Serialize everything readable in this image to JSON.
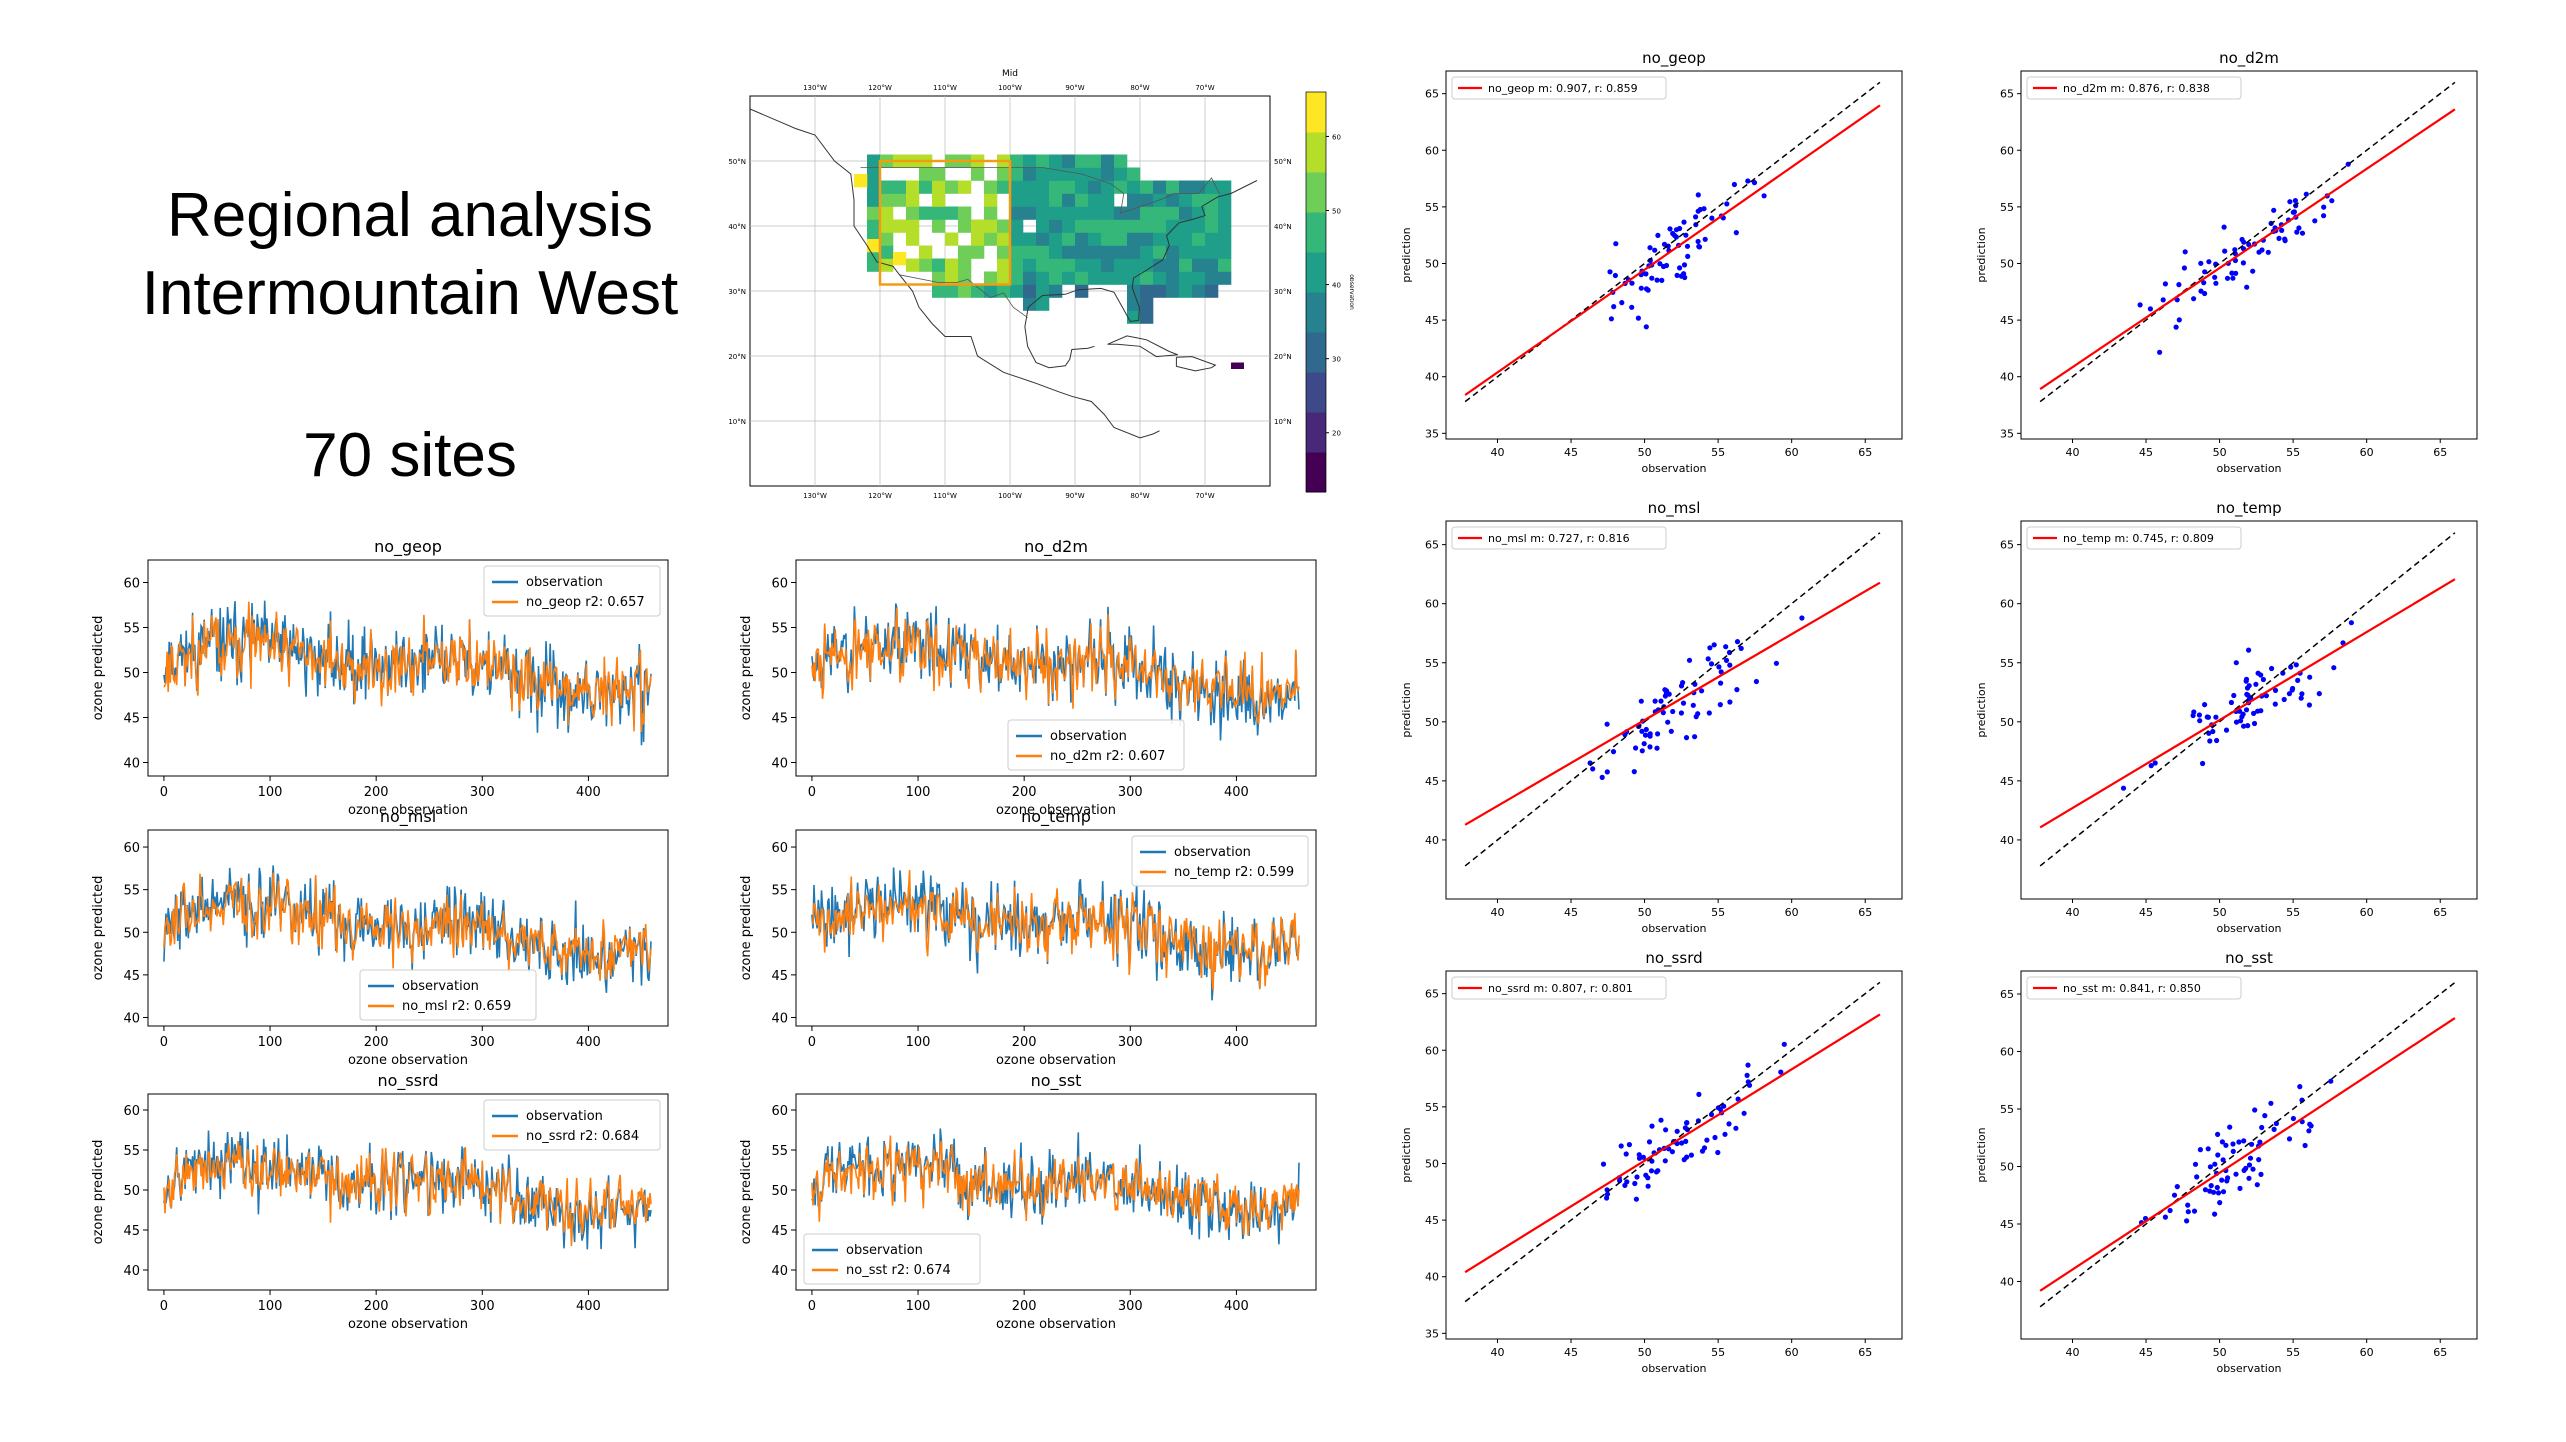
{
  "slide": {
    "title_line1": "Regional analysis",
    "title_line2": "Intermountain West",
    "sites": "70 sites"
  },
  "colors": {
    "observation": "#1f77b4",
    "prediction": "#ff7f0e",
    "scatter_points": "#0000ff",
    "fit_line": "#ff0000",
    "identity_line": "#000000"
  },
  "chart_data": [
    {
      "id": "map",
      "type": "heatmap",
      "title": "Mid",
      "colorbar_label": "observation",
      "colorbar_ticks": [
        20,
        30,
        40,
        50,
        60
      ],
      "colorbar_range": [
        12,
        66
      ],
      "lon_ticks": [
        "130°W",
        "120°W",
        "110°W",
        "100°W",
        "90°W",
        "80°W",
        "70°W"
      ],
      "lat_ticks": [
        "50°N",
        "40°N",
        "30°N",
        "20°N",
        "10°N"
      ],
      "region_box": {
        "lon": [
          -120,
          -100
        ],
        "lat": [
          31,
          50
        ]
      }
    },
    {
      "id": "ts_no_geop",
      "type": "line",
      "title": "no_geop",
      "xlabel": "ozone observation",
      "ylabel": "ozone predicted",
      "xlim": [
        -15,
        475
      ],
      "ylim": [
        38.5,
        62.5
      ],
      "xticks": [
        0,
        100,
        200,
        300,
        400
      ],
      "yticks": [
        40,
        45,
        50,
        55,
        60
      ],
      "legend_position": "upper-right",
      "series": [
        {
          "name": "observation",
          "color": "#1f77b4"
        },
        {
          "name": "no_geop  r2: 0.657",
          "color": "#ff7f0e"
        }
      ]
    },
    {
      "id": "ts_no_d2m",
      "type": "line",
      "title": "no_d2m",
      "xlabel": "ozone observation",
      "ylabel": "ozone predicted",
      "xlim": [
        -15,
        475
      ],
      "ylim": [
        38.5,
        62.5
      ],
      "xticks": [
        0,
        100,
        200,
        300,
        400
      ],
      "yticks": [
        40,
        45,
        50,
        55,
        60
      ],
      "legend_position": "lower-center",
      "series": [
        {
          "name": "observation",
          "color": "#1f77b4"
        },
        {
          "name": "no_d2m  r2: 0.607",
          "color": "#ff7f0e"
        }
      ]
    },
    {
      "id": "ts_no_msl",
      "type": "line",
      "title": "no_msl",
      "xlabel": "ozone observation",
      "ylabel": "ozone predicted",
      "xlim": [
        -15,
        475
      ],
      "ylim": [
        39,
        62
      ],
      "xticks": [
        0,
        100,
        200,
        300,
        400
      ],
      "yticks": [
        40,
        45,
        50,
        55,
        60
      ],
      "legend_position": "lower-center",
      "series": [
        {
          "name": "observation",
          "color": "#1f77b4"
        },
        {
          "name": "no_msl  r2: 0.659",
          "color": "#ff7f0e"
        }
      ]
    },
    {
      "id": "ts_no_temp",
      "type": "line",
      "title": "no_temp",
      "xlabel": "ozone observation",
      "ylabel": "ozone predicted",
      "xlim": [
        -15,
        475
      ],
      "ylim": [
        39,
        62
      ],
      "xticks": [
        0,
        100,
        200,
        300,
        400
      ],
      "yticks": [
        40,
        45,
        50,
        55,
        60
      ],
      "legend_position": "upper-right",
      "series": [
        {
          "name": "observation",
          "color": "#1f77b4"
        },
        {
          "name": "no_temp  r2: 0.599",
          "color": "#ff7f0e"
        }
      ]
    },
    {
      "id": "ts_no_ssrd",
      "type": "line",
      "title": "no_ssrd",
      "xlabel": "ozone observation",
      "ylabel": "ozone predicted",
      "xlim": [
        -15,
        475
      ],
      "ylim": [
        37.5,
        62
      ],
      "xticks": [
        0,
        100,
        200,
        300,
        400
      ],
      "yticks": [
        40,
        45,
        50,
        55,
        60
      ],
      "legend_position": "upper-right",
      "series": [
        {
          "name": "observation",
          "color": "#1f77b4"
        },
        {
          "name": "no_ssrd  r2: 0.684",
          "color": "#ff7f0e"
        }
      ]
    },
    {
      "id": "ts_no_sst",
      "type": "line",
      "title": "no_sst",
      "xlabel": "ozone observation",
      "ylabel": "ozone predicted",
      "xlim": [
        -15,
        475
      ],
      "ylim": [
        37.5,
        62
      ],
      "xticks": [
        0,
        100,
        200,
        300,
        400
      ],
      "yticks": [
        40,
        45,
        50,
        55,
        60
      ],
      "legend_position": "lower-left",
      "series": [
        {
          "name": "observation",
          "color": "#1f77b4"
        },
        {
          "name": "no_sst  r2: 0.674",
          "color": "#ff7f0e"
        }
      ]
    },
    {
      "id": "sc_no_geop",
      "type": "scatter",
      "title": "no_geop",
      "xlabel": "observation",
      "ylabel": "prediction",
      "xlim": [
        36.5,
        67.5
      ],
      "ylim": [
        34.5,
        67
      ],
      "xticks": [
        40,
        45,
        50,
        55,
        60,
        65
      ],
      "yticks": [
        35,
        40,
        45,
        50,
        55,
        60,
        65
      ],
      "legend": "no_geop m: 0.907, r: 0.859",
      "legend_position": "upper-left",
      "fit": {
        "m": 0.907,
        "b": 4.1
      }
    },
    {
      "id": "sc_no_d2m",
      "type": "scatter",
      "title": "no_d2m",
      "xlabel": "observation",
      "ylabel": "prediction",
      "xlim": [
        36.5,
        67.5
      ],
      "ylim": [
        34.5,
        67
      ],
      "xticks": [
        40,
        45,
        50,
        55,
        60,
        65
      ],
      "yticks": [
        35,
        40,
        45,
        50,
        55,
        60,
        65
      ],
      "legend": "no_d2m m: 0.876, r: 0.838",
      "legend_position": "upper-left",
      "fit": {
        "m": 0.876,
        "b": 5.8
      }
    },
    {
      "id": "sc_no_msl",
      "type": "scatter",
      "title": "no_msl",
      "xlabel": "observation",
      "ylabel": "prediction",
      "xlim": [
        36.5,
        67.5
      ],
      "ylim": [
        35,
        67
      ],
      "xticks": [
        40,
        45,
        50,
        55,
        60,
        65
      ],
      "yticks": [
        40,
        45,
        50,
        55,
        60,
        65
      ],
      "legend": "no_msl m: 0.727, r: 0.816",
      "legend_position": "upper-left",
      "fit": {
        "m": 0.727,
        "b": 13.8
      }
    },
    {
      "id": "sc_no_temp",
      "type": "scatter",
      "title": "no_temp",
      "xlabel": "observation",
      "ylabel": "prediction",
      "xlim": [
        36.5,
        67.5
      ],
      "ylim": [
        35,
        67
      ],
      "xticks": [
        40,
        45,
        50,
        55,
        60,
        65
      ],
      "yticks": [
        40,
        45,
        50,
        55,
        60,
        65
      ],
      "legend": "no_temp m: 0.745, r: 0.809",
      "legend_position": "upper-left",
      "fit": {
        "m": 0.745,
        "b": 12.9
      }
    },
    {
      "id": "sc_no_ssrd",
      "type": "scatter",
      "title": "no_ssrd",
      "xlabel": "observation",
      "ylabel": "prediction",
      "xlim": [
        36.5,
        67.5
      ],
      "ylim": [
        34.5,
        67
      ],
      "xticks": [
        40,
        45,
        50,
        55,
        60,
        65
      ],
      "yticks": [
        35,
        40,
        45,
        50,
        55,
        60,
        65
      ],
      "legend": "no_ssrd m: 0.807, r: 0.801",
      "legend_position": "upper-left",
      "fit": {
        "m": 0.807,
        "b": 9.9
      }
    },
    {
      "id": "sc_no_sst",
      "type": "scatter",
      "title": "no_sst",
      "xlabel": "observation",
      "ylabel": "prediction",
      "xlim": [
        36.5,
        67.5
      ],
      "ylim": [
        35,
        67
      ],
      "xticks": [
        40,
        45,
        50,
        55,
        60,
        65
      ],
      "yticks": [
        40,
        45,
        50,
        55,
        60,
        65
      ],
      "legend": "no_sst m: 0.841, r: 0.850",
      "legend_position": "upper-left",
      "fit": {
        "m": 0.841,
        "b": 7.4
      }
    }
  ]
}
